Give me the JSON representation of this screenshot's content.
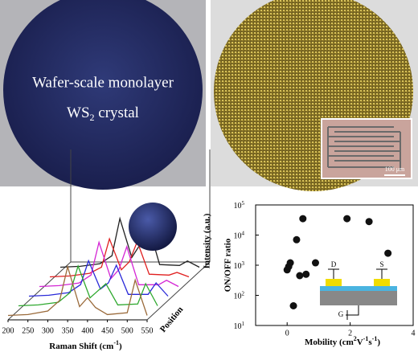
{
  "photos": {
    "wafer_text_line1": "Wafer-scale monolayer",
    "wafer_text_line2": [
      "WS",
      "2",
      " crystal"
    ],
    "scale_bar": "100 μm"
  },
  "chart_data": [
    {
      "type": "waterfall",
      "xlabel": [
        "Raman Shift (cm",
        "-1",
        ")"
      ],
      "ylabel": "Intensity (a.u.)",
      "zlabel": "Position",
      "x": [
        200,
        250,
        300,
        330,
        350,
        380,
        400,
        420,
        450,
        500,
        520,
        550
      ],
      "xlim": [
        200,
        550
      ],
      "xticks": [
        200,
        250,
        300,
        350,
        400,
        450,
        500,
        550
      ],
      "ylim": [
        0,
        100
      ],
      "series": [
        {
          "color": "#9a6a3a",
          "values": [
            5,
            6,
            10,
            22,
            60,
            15,
            25,
            14,
            6,
            8,
            45,
            5
          ]
        },
        {
          "color": "#2ea82e",
          "values": [
            5,
            6,
            9,
            20,
            50,
            14,
            22,
            30,
            6,
            7,
            30,
            5
          ]
        },
        {
          "color": "#2a2ad8",
          "values": [
            5,
            6,
            9,
            18,
            45,
            13,
            20,
            40,
            7,
            7,
            20,
            5
          ]
        },
        {
          "color": "#d426d4",
          "values": [
            5,
            6,
            9,
            18,
            55,
            14,
            24,
            50,
            7,
            7,
            12,
            5
          ]
        },
        {
          "color": "#e02020",
          "values": [
            5,
            6,
            9,
            16,
            48,
            13,
            22,
            45,
            8,
            7,
            10,
            5
          ]
        },
        {
          "color": "#222222",
          "values": [
            5,
            6,
            9,
            18,
            60,
            16,
            30,
            55,
            8,
            7,
            12,
            5
          ]
        }
      ]
    },
    {
      "type": "scatter",
      "xlabel": [
        "Mobility (cm",
        "2",
        "V",
        "-1",
        "s",
        "-1",
        ")"
      ],
      "ylabel": "ON/OFF ratio",
      "x": [
        0.0,
        0.05,
        0.1,
        0.2,
        0.3,
        0.4,
        0.5,
        0.6,
        0.9,
        1.9,
        2.6,
        3.2
      ],
      "values": [
        700,
        900,
        1200,
        45,
        7000,
        450,
        35000,
        500,
        1200,
        35000,
        28000,
        2500
      ],
      "color": "#111111",
      "xlim": [
        -1,
        4
      ],
      "xticks": [
        0,
        2,
        4
      ],
      "ylim": [
        10,
        100000
      ],
      "log_y": true,
      "yticks": [
        {
          "value": 10,
          "label": "10",
          "sup": "1"
        },
        {
          "value": 100,
          "label": "10",
          "sup": "2"
        },
        {
          "value": 1000,
          "label": "10",
          "sup": "3"
        },
        {
          "value": 10000,
          "label": "10",
          "sup": "4"
        },
        {
          "value": 100000,
          "label": "10",
          "sup": "5"
        }
      ],
      "inset_labels": [
        "D",
        "S",
        "G"
      ]
    }
  ]
}
